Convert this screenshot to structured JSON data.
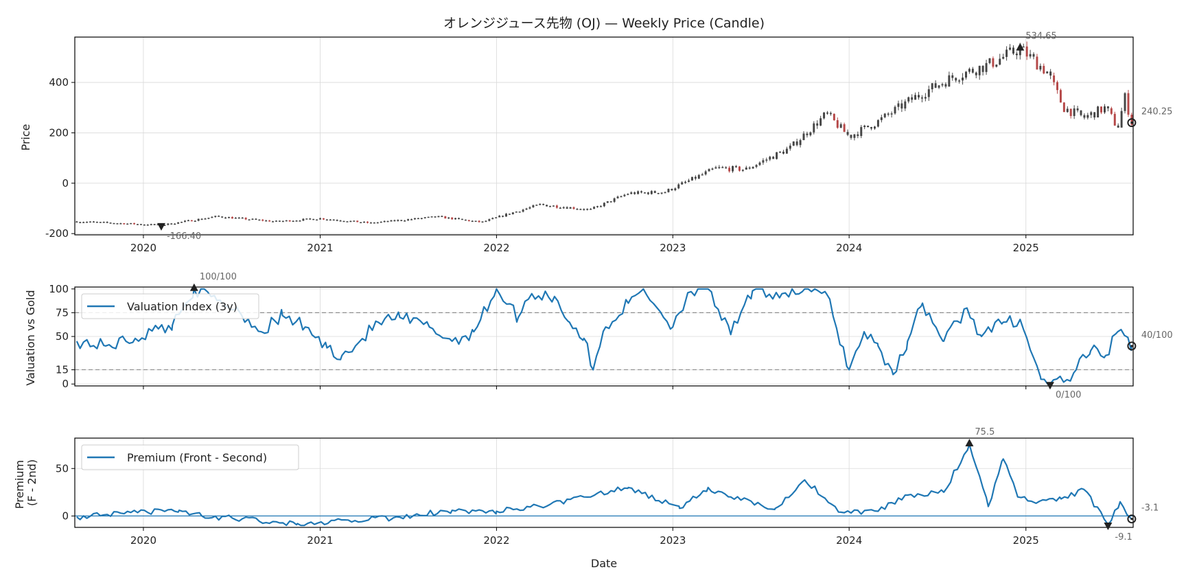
{
  "chart_data": [
    {
      "type": "candlestick",
      "title": "オレンジジュース先物 (OJ) — Weekly Price (Candle)",
      "xlabel": "",
      "ylabel": "Price",
      "xlim": [
        "2019-08-12",
        "2025-08-11"
      ],
      "ylim": [
        -205,
        580
      ],
      "yticks": [
        -200,
        0,
        200,
        400
      ],
      "xticks": [
        "2020",
        "2021",
        "2022",
        "2023",
        "2024",
        "2025"
      ],
      "grid": true,
      "colors": {
        "body": "#454545",
        "down": "#b54848",
        "up_marker": "#2ca02c"
      },
      "close_anchors": [
        [
          "2019-08-16",
          -152
        ],
        [
          "2019-11-01",
          -158
        ],
        [
          "2020-02-07",
          -166.4
        ],
        [
          "2020-06-01",
          -132
        ],
        [
          "2020-10-01",
          -152
        ],
        [
          "2021-01-01",
          -140
        ],
        [
          "2021-04-15",
          -158
        ],
        [
          "2021-09-01",
          -133
        ],
        [
          "2021-12-01",
          -155
        ],
        [
          "2022-02-01",
          -118
        ],
        [
          "2022-04-01",
          -85
        ],
        [
          "2022-07-15",
          -105
        ],
        [
          "2022-10-01",
          -40
        ],
        [
          "2022-12-15",
          -35
        ],
        [
          "2023-04-01",
          60
        ],
        [
          "2023-06-01",
          55
        ],
        [
          "2023-09-01",
          140
        ],
        [
          "2023-11-15",
          275
        ],
        [
          "2024-01-01",
          185
        ],
        [
          "2024-03-01",
          245
        ],
        [
          "2024-05-15",
          340
        ],
        [
          "2024-08-01",
          420
        ],
        [
          "2024-10-15",
          470
        ],
        [
          "2024-12-20",
          534.65
        ],
        [
          "2025-02-15",
          440
        ],
        [
          "2025-03-20",
          300
        ],
        [
          "2025-05-01",
          260
        ],
        [
          "2025-06-15",
          300
        ],
        [
          "2025-07-10",
          220
        ],
        [
          "2025-07-25",
          340
        ],
        [
          "2025-08-08",
          240.25
        ]
      ],
      "annotations": [
        {
          "label": "534.65",
          "date": "2024-12-20",
          "value": 534.65,
          "marker": "max"
        },
        {
          "label": "-166.40",
          "date": "2020-02-07",
          "value": -166.4,
          "marker": "min"
        },
        {
          "label": "240.25",
          "date": "2025-08-08",
          "value": 240.25,
          "marker": "last"
        }
      ]
    },
    {
      "type": "line",
      "xlabel": "",
      "ylabel": "Valuation vs Gold",
      "xlim": [
        "2019-08-12",
        "2025-08-11"
      ],
      "ylim": [
        -2,
        102
      ],
      "yticks": [
        0,
        15,
        50,
        75,
        100
      ],
      "reference_lines": [
        15,
        75
      ],
      "grid": true,
      "legend": "upper left",
      "series": [
        {
          "name": "Valuation Index (3y)",
          "color": "#1f77b4",
          "points": [
            [
              "2019-08-16",
              45
            ],
            [
              "2019-10-15",
              40
            ],
            [
              "2019-12-15",
              48
            ],
            [
              "2020-02-01",
              58
            ],
            [
              "2020-03-01",
              62
            ],
            [
              "2020-04-15",
              100
            ],
            [
              "2020-06-01",
              88
            ],
            [
              "2020-07-15",
              78
            ],
            [
              "2020-09-01",
              55
            ],
            [
              "2020-10-15",
              72
            ],
            [
              "2020-12-01",
              60
            ],
            [
              "2021-01-15",
              38
            ],
            [
              "2021-02-15",
              30
            ],
            [
              "2021-03-15",
              40
            ],
            [
              "2021-05-01",
              65
            ],
            [
              "2021-06-15",
              70
            ],
            [
              "2021-08-15",
              60
            ],
            [
              "2021-10-01",
              45
            ],
            [
              "2021-11-15",
              55
            ],
            [
              "2022-01-01",
              100
            ],
            [
              "2022-02-15",
              70
            ],
            [
              "2022-03-15",
              95
            ],
            [
              "2022-05-01",
              92
            ],
            [
              "2022-06-01",
              65
            ],
            [
              "2022-07-01",
              48
            ],
            [
              "2022-07-20",
              15
            ],
            [
              "2022-08-15",
              60
            ],
            [
              "2022-10-01",
              85
            ],
            [
              "2022-11-01",
              100
            ],
            [
              "2023-01-01",
              60
            ],
            [
              "2023-02-01",
              96
            ],
            [
              "2023-03-15",
              100
            ],
            [
              "2023-05-01",
              52
            ],
            [
              "2023-06-15",
              98
            ],
            [
              "2023-08-15",
              95
            ],
            [
              "2023-10-01",
              100
            ],
            [
              "2023-11-15",
              95
            ],
            [
              "2024-01-01",
              15
            ],
            [
              "2024-02-01",
              55
            ],
            [
              "2024-03-01",
              40
            ],
            [
              "2024-04-01",
              10
            ],
            [
              "2024-05-01",
              45
            ],
            [
              "2024-06-01",
              85
            ],
            [
              "2024-07-15",
              45
            ],
            [
              "2024-09-01",
              80
            ],
            [
              "2024-10-01",
              50
            ],
            [
              "2024-11-15",
              65
            ],
            [
              "2024-12-20",
              68
            ],
            [
              "2025-02-01",
              5
            ],
            [
              "2025-02-20",
              0
            ],
            [
              "2025-03-20",
              2
            ],
            [
              "2025-04-15",
              15
            ],
            [
              "2025-05-15",
              35
            ],
            [
              "2025-06-15",
              30
            ],
            [
              "2025-07-10",
              55
            ],
            [
              "2025-08-08",
              40
            ]
          ]
        }
      ],
      "annotations": [
        {
          "label": "100/100",
          "date": "2020-04-15",
          "value": 100,
          "marker": "max"
        },
        {
          "label": "0/100",
          "date": "2025-02-20",
          "value": 0,
          "marker": "min"
        },
        {
          "label": "40/100",
          "date": "2025-08-08",
          "value": 40,
          "marker": "last"
        }
      ]
    },
    {
      "type": "line",
      "xlabel": "Date",
      "ylabel": "Premium\n(F - 2nd)",
      "xlim": [
        "2019-08-12",
        "2025-08-11"
      ],
      "ylim": [
        -12,
        82
      ],
      "yticks": [
        0,
        50
      ],
      "xticks": [
        "2020",
        "2021",
        "2022",
        "2023",
        "2024",
        "2025"
      ],
      "reference_lines": [
        0
      ],
      "grid": true,
      "legend": "upper left",
      "series": [
        {
          "name": "Premium (Front - Second)",
          "color": "#1f77b4",
          "points": [
            [
              "2019-08-16",
              -1
            ],
            [
              "2020-03-15",
              6
            ],
            [
              "2020-05-01",
              0
            ],
            [
              "2020-11-15",
              -8
            ],
            [
              "2021-06-01",
              -2
            ],
            [
              "2021-10-01",
              6
            ],
            [
              "2022-01-01",
              5
            ],
            [
              "2022-04-01",
              10
            ],
            [
              "2022-07-01",
              20
            ],
            [
              "2022-10-01",
              30
            ],
            [
              "2023-01-15",
              8
            ],
            [
              "2023-03-15",
              30
            ],
            [
              "2023-05-01",
              20
            ],
            [
              "2023-08-01",
              8
            ],
            [
              "2023-10-01",
              38
            ],
            [
              "2023-12-15",
              4
            ],
            [
              "2024-03-01",
              5
            ],
            [
              "2024-05-01",
              22
            ],
            [
              "2024-07-15",
              25
            ],
            [
              "2024-09-06",
              75.5
            ],
            [
              "2024-10-15",
              10
            ],
            [
              "2024-11-15",
              60
            ],
            [
              "2024-12-15",
              20
            ],
            [
              "2025-01-15",
              15
            ],
            [
              "2025-03-15",
              18
            ],
            [
              "2025-05-01",
              28
            ],
            [
              "2025-06-20",
              -9.1
            ],
            [
              "2025-07-15",
              15
            ],
            [
              "2025-08-08",
              -3.1
            ]
          ]
        }
      ],
      "annotations": [
        {
          "label": "75.5",
          "date": "2024-09-06",
          "value": 75.5,
          "marker": "max"
        },
        {
          "label": "-9.1",
          "date": "2025-06-20",
          "value": -9.1,
          "marker": "min"
        },
        {
          "label": "-3.1",
          "date": "2025-08-08",
          "value": -3.1,
          "marker": "last"
        }
      ]
    }
  ]
}
